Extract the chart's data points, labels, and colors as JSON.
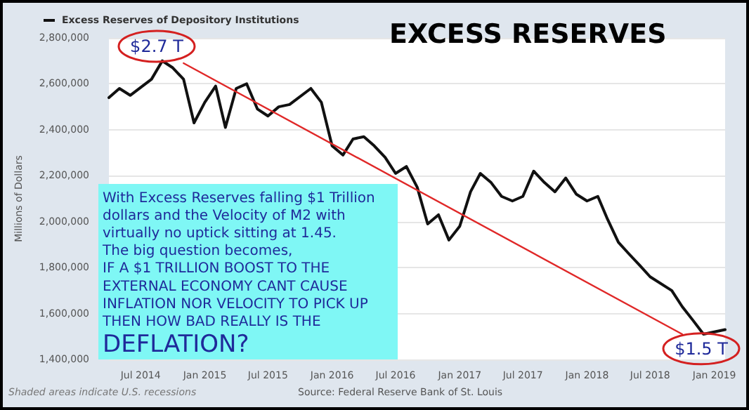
{
  "chart_data": {
    "type": "line",
    "title": "EXCESS RESERVES",
    "ylabel": "Millions of Dollars",
    "x": [
      "2014-04",
      "2014-05",
      "2014-06",
      "2014-08",
      "2014-09",
      "2014-10",
      "2014-11",
      "2014-12",
      "2015-01",
      "2015-02",
      "2015-03",
      "2015-04",
      "2015-05",
      "2015-06",
      "2015-07",
      "2015-08",
      "2015-09",
      "2015-11",
      "2015-12",
      "2016-01",
      "2016-02",
      "2016-03",
      "2016-04",
      "2016-05",
      "2016-06",
      "2016-07",
      "2016-08",
      "2016-09",
      "2016-10",
      "2016-11",
      "2016-12",
      "2017-01",
      "2017-02",
      "2017-03",
      "2017-04",
      "2017-05",
      "2017-06",
      "2017-07",
      "2017-08",
      "2017-09",
      "2017-10",
      "2017-11",
      "2017-12",
      "2018-01",
      "2018-02",
      "2018-03",
      "2018-04",
      "2018-05",
      "2018-06",
      "2018-07",
      "2018-09",
      "2018-10",
      "2018-11",
      "2018-12",
      "2019-01",
      "2019-02"
    ],
    "series": [
      {
        "name": "Excess Reserves of Depository Institutions",
        "color": "#111111",
        "values": [
          2540000,
          2580000,
          2550000,
          2620000,
          2700000,
          2670000,
          2620000,
          2430000,
          2520000,
          2590000,
          2410000,
          2580000,
          2600000,
          2490000,
          2460000,
          2500000,
          2510000,
          2580000,
          2520000,
          2330000,
          2290000,
          2360000,
          2370000,
          2330000,
          2280000,
          2210000,
          2240000,
          2150000,
          1990000,
          2030000,
          1920000,
          1980000,
          2130000,
          2210000,
          2170000,
          2110000,
          2090000,
          2110000,
          2220000,
          2170000,
          2130000,
          2190000,
          2120000,
          2090000,
          2110000,
          2010000,
          1910000,
          1860000,
          1810000,
          1760000,
          1700000,
          1630000,
          1570000,
          1510000,
          1520000,
          1530000
        ]
      },
      {
        "type": "line",
        "color": "#e02828",
        "x": [
          "2014-11",
          "2018-10"
        ],
        "values": [
          2690000,
          1510000
        ]
      }
    ],
    "xlim": [
      "2014-04",
      "2019-02"
    ],
    "xticks": [
      {
        "value": "2014-07",
        "label": "Jul 2014"
      },
      {
        "value": "2015-01",
        "label": "Jan 2015"
      },
      {
        "value": "2015-07",
        "label": "Jul 2015"
      },
      {
        "value": "2016-01",
        "label": "Jan 2016"
      },
      {
        "value": "2016-07",
        "label": "Jul 2016"
      },
      {
        "value": "2017-01",
        "label": "Jan 2017"
      },
      {
        "value": "2017-07",
        "label": "Jul 2017"
      },
      {
        "value": "2018-01",
        "label": "Jan 2018"
      },
      {
        "value": "2018-07",
        "label": "Jul 2018"
      },
      {
        "value": "2019-01",
        "label": "Jan 2019"
      }
    ],
    "ylim": [
      1400000,
      2800000
    ],
    "yticks": [
      {
        "value": 1400000,
        "label": "1,400,000"
      },
      {
        "value": 1600000,
        "label": "1,600,000"
      },
      {
        "value": 1800000,
        "label": "1,800,000"
      },
      {
        "value": 2000000,
        "label": "2,000,000"
      },
      {
        "value": 2200000,
        "label": "2,200,000"
      },
      {
        "value": 2400000,
        "label": "2,400,000"
      },
      {
        "value": 2600000,
        "label": "2,600,000"
      },
      {
        "value": 2800000,
        "label": "2,800,000"
      }
    ],
    "grid": "y",
    "legend": "top left",
    "marker": "none",
    "line_style": "solid",
    "annotations": [
      {
        "text": "$2.7 T",
        "x": "2014-09",
        "y": 2700000
      },
      {
        "text": "$1.5 T",
        "x": "2019-01",
        "y": 1520000
      },
      "With Excess Reserves falling $1 Trillion dollars and the Velocity of M2 with virtually no uptick sitting at 1.45.\nThe big question becomes,\nIF A $1 TRILLION BOOST TO THE EXTERNAL ECONOMY CANT CAUSE INFLATION NOR VELOCITY TO PICK UP THEN HOW BAD REALLY IS THE",
      "DEFLATION?",
      "Shaded areas indicate U.S. recessions",
      "Source: Federal Reserve Bank of St. Louis"
    ]
  }
}
